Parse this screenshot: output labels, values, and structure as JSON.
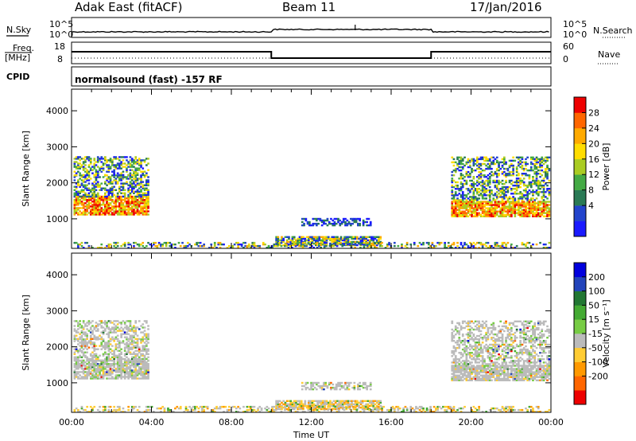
{
  "header": {
    "station": "Adak East (fitACF)",
    "beam": "Beam 11",
    "date": "17/Jan/2016"
  },
  "strip": {
    "nsky_label": "N.Sky",
    "nsearch_label": "N.Search",
    "noise_ticks_left": [
      "10^5",
      "10^0"
    ],
    "noise_ticks_right": [
      "10^5",
      "10^0"
    ],
    "freq_label": "Freq.",
    "freq_unit": "[MHz]",
    "freq_ticks": [
      "18",
      "8"
    ],
    "nave_label": "Nave",
    "nave_ticks": [
      "60",
      "0"
    ],
    "cpid_label": "CPID",
    "mode_text": "normalsound (fast) -157 RF"
  },
  "chart_data": [
    {
      "type": "heatmap",
      "name": "power",
      "ylabel": "Slant Range [km]",
      "xlabel": "",
      "ylim": [
        180,
        4600
      ],
      "y_ticks": [
        "1000",
        "2000",
        "3000",
        "4000"
      ],
      "x_ticks": [],
      "colorbar_label": "Power [dB]",
      "colorbar_ticks": [
        "4",
        "8",
        "12",
        "16",
        "20",
        "24",
        "28"
      ],
      "colors": [
        "#1a1aff",
        "#2244cc",
        "#2a7a55",
        "#44aa44",
        "#aacc22",
        "#ffdd00",
        "#ffaa00",
        "#ff6600",
        "#ee0000"
      ]
    },
    {
      "type": "heatmap",
      "name": "velocity",
      "ylabel": "Slant Range [km]",
      "xlabel": "Time UT",
      "ylim": [
        180,
        4600
      ],
      "y_ticks": [
        "1000",
        "2000",
        "3000",
        "4000"
      ],
      "x_ticks": [
        "00:00",
        "04:00",
        "08:00",
        "12:00",
        "16:00",
        "20:00",
        "00:00"
      ],
      "colorbar_label": "Velocity [m s⁻¹]",
      "colorbar_ticks": [
        "200",
        "100",
        "50",
        "15",
        "-15",
        "-50",
        "-100",
        "-200"
      ],
      "colors": [
        "#0000dd",
        "#2244bb",
        "#227733",
        "#44aa33",
        "#77cc44",
        "#bbbbbb",
        "#ffcc33",
        "#ff9900",
        "#ff6600",
        "#ee0000"
      ]
    }
  ]
}
